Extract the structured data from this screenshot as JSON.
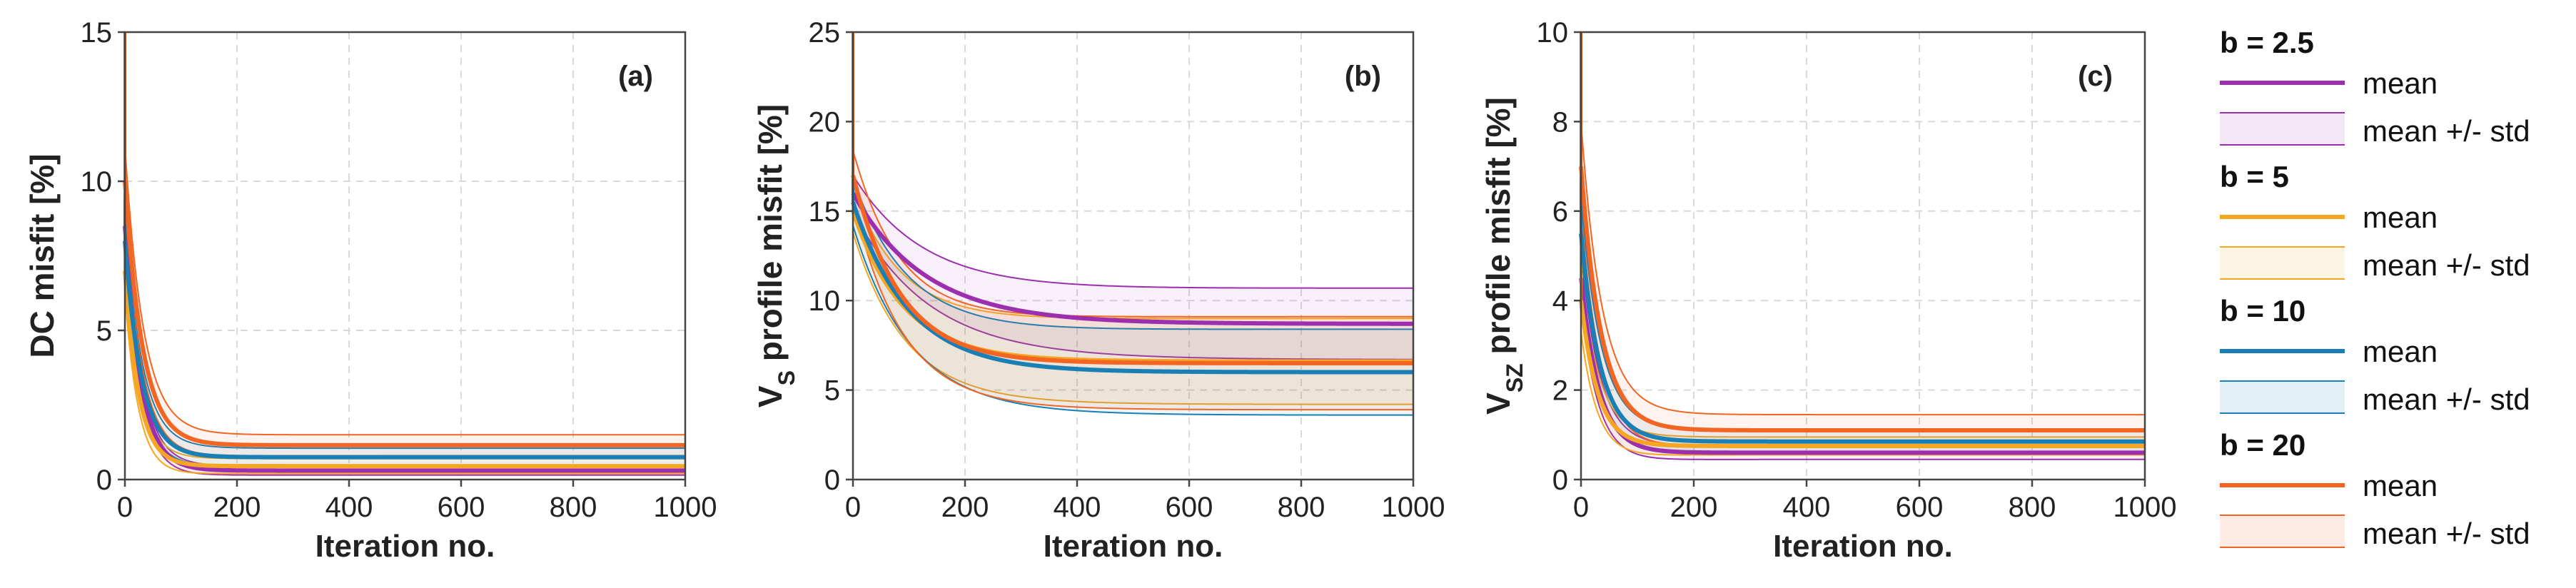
{
  "colors": {
    "b2_5": "#9b2fae",
    "b5": "#f5a623",
    "b10": "#1a7fb5",
    "b20": "#f26522"
  },
  "chart_data": [
    {
      "type": "line",
      "panel_tag": "(a)",
      "ylabel": "DC misfit [%]",
      "ylabel_sub": "",
      "ylabel_after": "",
      "xlabel": "Iteration no.",
      "xlim": [
        0,
        1000
      ],
      "ylim": [
        0,
        15
      ],
      "xticks": [
        0,
        200,
        400,
        600,
        800,
        1000
      ],
      "yticks": [
        0,
        5,
        10,
        15
      ],
      "grid": true,
      "series": [
        {
          "name": "b = 2.5",
          "key": "b2_5",
          "start": 8.5,
          "end": 0.3,
          "decay": 28,
          "std": 0.15,
          "std_start": 0.6
        },
        {
          "name": "b = 5",
          "key": "b5",
          "start": 7.0,
          "end": 0.45,
          "decay": 25,
          "std": 0.25,
          "std_start": 0.8
        },
        {
          "name": "b = 10",
          "key": "b10",
          "start": 8.0,
          "end": 0.75,
          "decay": 30,
          "std": 0.3,
          "std_start": 0.9
        },
        {
          "name": "b = 20",
          "key": "b20",
          "start": 10.0,
          "end": 1.15,
          "decay": 32,
          "std": 0.35,
          "std_start": 1.2
        }
      ]
    },
    {
      "type": "line",
      "panel_tag": "(b)",
      "ylabel": "V",
      "ylabel_sub": "S",
      "ylabel_after": " profile misfit [%]",
      "xlabel": "Iteration no.",
      "xlim": [
        0,
        1000
      ],
      "ylim": [
        0,
        25
      ],
      "xticks": [
        0,
        200,
        400,
        600,
        800,
        1000
      ],
      "yticks": [
        0,
        5,
        10,
        15,
        20,
        25
      ],
      "grid": true,
      "series": [
        {
          "name": "b = 2.5",
          "key": "b2_5",
          "start": 16.0,
          "end": 8.7,
          "decay": 130,
          "std": 2.0,
          "std_start": 1.0
        },
        {
          "name": "b = 5",
          "key": "b5",
          "start": 15.0,
          "end": 6.6,
          "decay": 90,
          "std": 2.4,
          "std_start": 1.2
        },
        {
          "name": "b = 10",
          "key": "b10",
          "start": 15.5,
          "end": 6.0,
          "decay": 100,
          "std": 2.4,
          "std_start": 1.3
        },
        {
          "name": "b = 20",
          "key": "b20",
          "start": 17.0,
          "end": 6.5,
          "decay": 85,
          "std": 2.6,
          "std_start": 1.4
        }
      ]
    },
    {
      "type": "line",
      "panel_tag": "(c)",
      "ylabel": "V",
      "ylabel_sub": "SZ",
      "ylabel_after": " profile misfit [%]",
      "xlabel": "Iteration no.",
      "xlim": [
        0,
        1000
      ],
      "ylim": [
        0,
        10
      ],
      "xticks": [
        0,
        200,
        400,
        600,
        800,
        1000
      ],
      "yticks": [
        0,
        2,
        4,
        6,
        8,
        10
      ],
      "grid": true,
      "series": [
        {
          "name": "b = 2.5",
          "key": "b2_5",
          "start": 4.5,
          "end": 0.6,
          "decay": 32,
          "std": 0.15,
          "std_start": 0.6
        },
        {
          "name": "b = 5",
          "key": "b5",
          "start": 4.0,
          "end": 0.75,
          "decay": 30,
          "std": 0.2,
          "std_start": 0.7
        },
        {
          "name": "b = 10",
          "key": "b10",
          "start": 5.5,
          "end": 0.85,
          "decay": 34,
          "std": 0.25,
          "std_start": 0.8
        },
        {
          "name": "b = 20",
          "key": "b20",
          "start": 7.0,
          "end": 1.1,
          "decay": 36,
          "std": 0.35,
          "std_start": 1.0
        }
      ]
    }
  ],
  "legend": {
    "groups": [
      {
        "title": "b = 2.5",
        "key": "b2_5",
        "mean_label": "mean",
        "std_label": "mean +/- std"
      },
      {
        "title": "b = 5",
        "key": "b5",
        "mean_label": "mean",
        "std_label": "mean +/- std"
      },
      {
        "title": "b = 10",
        "key": "b10",
        "mean_label": "mean",
        "std_label": "mean +/- std"
      },
      {
        "title": "b = 20",
        "key": "b20",
        "mean_label": "mean",
        "std_label": "mean +/- std"
      }
    ]
  }
}
